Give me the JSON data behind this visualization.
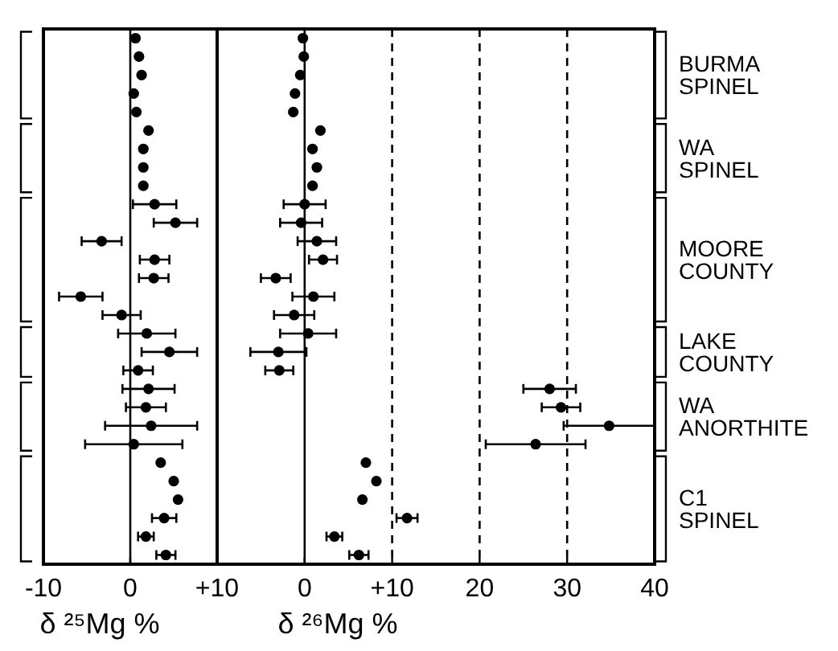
{
  "chart_data": [
    {
      "type": "scatter",
      "orientation": "horizontal",
      "xlabel": "δ ²⁵Mg %",
      "categories": [
        null,
        null,
        null,
        null,
        null,
        null,
        null,
        null,
        null,
        null,
        null,
        null,
        null,
        null,
        null,
        null,
        null,
        null,
        null,
        null,
        null,
        null,
        null,
        null,
        null,
        null,
        null,
        null,
        null
      ],
      "series": [
        {
          "color": "#000000",
          "values": [
            0.6,
            1.0,
            1.3,
            0.4,
            0.7,
            2.1,
            1.5,
            1.5,
            1.5,
            2.8,
            5.2,
            -3.3,
            2.8,
            2.7,
            -5.7,
            -1.0,
            1.9,
            4.5,
            0.9,
            2.1,
            1.8,
            2.4,
            0.4,
            3.5,
            5.0,
            5.5,
            3.9,
            1.8,
            4.1
          ],
          "errors": [
            null,
            null,
            null,
            null,
            null,
            null,
            null,
            null,
            null,
            2.5,
            2.5,
            2.3,
            1.7,
            1.7,
            2.5,
            2.2,
            3.3,
            3.2,
            1.7,
            3.0,
            2.3,
            5.3,
            5.6,
            null,
            null,
            null,
            1.4,
            0.9,
            1.1
          ]
        }
      ],
      "xlim": [
        -10,
        10
      ],
      "xticks": [
        {
          "value": -10,
          "label": "-10"
        },
        {
          "value": 0,
          "label": "0"
        },
        {
          "value": 10,
          "label": "+10"
        }
      ],
      "ref_lines": [
        {
          "axis": "x",
          "value": 0,
          "line_style": "solid"
        }
      ],
      "marker": "circle",
      "grid": false,
      "tick_labels": "x"
    },
    {
      "type": "scatter",
      "orientation": "horizontal",
      "xlabel": "δ ²⁶Mg %",
      "categories": [
        null,
        null,
        null,
        null,
        null,
        null,
        null,
        null,
        null,
        null,
        null,
        null,
        null,
        null,
        null,
        null,
        null,
        null,
        null,
        null,
        null,
        null,
        null,
        null,
        null,
        null,
        null,
        null,
        null
      ],
      "series": [
        {
          "color": "#000000",
          "values": [
            -0.2,
            -0.1,
            -0.5,
            -1.1,
            -1.3,
            1.8,
            0.9,
            1.4,
            0.9,
            0,
            -0.4,
            1.4,
            2.1,
            -3.3,
            1.0,
            -1.2,
            0.4,
            -3.0,
            -2.9,
            28.0,
            29.3,
            34.8,
            26.4,
            7.0,
            8.2,
            6.6,
            11.7,
            3.4,
            6.2
          ],
          "errors": [
            null,
            null,
            null,
            null,
            null,
            null,
            null,
            null,
            null,
            2.4,
            2.4,
            2.2,
            1.6,
            1.7,
            2.4,
            2.3,
            3.2,
            3.2,
            1.6,
            3.0,
            2.2,
            [
              29.6,
              40
            ],
            5.7,
            null,
            null,
            null,
            1.2,
            0.9,
            1.1
          ]
        }
      ],
      "xlim": [
        -10,
        40
      ],
      "xticks": [
        {
          "value": -10,
          "label": null
        },
        {
          "value": 0,
          "label": "0"
        },
        {
          "value": 10,
          "label": "+10"
        },
        20,
        30,
        40
      ],
      "ref_lines": [
        {
          "axis": "x",
          "value": 0,
          "line_style": "solid"
        },
        {
          "axis": "x",
          "value": 10,
          "line_style": "dashed"
        },
        {
          "axis": "x",
          "value": 20,
          "line_style": "dashed"
        },
        {
          "axis": "x",
          "value": 30,
          "line_style": "dashed"
        }
      ],
      "annotations": [
        "BURMA SPINEL",
        "WA SPINEL",
        "MOORE COUNTY",
        "LAKE COUNTY",
        "WA ANORTHITE",
        "C1 SPINEL"
      ],
      "marker": "circle",
      "grid": false,
      "tick_labels": "x"
    }
  ]
}
